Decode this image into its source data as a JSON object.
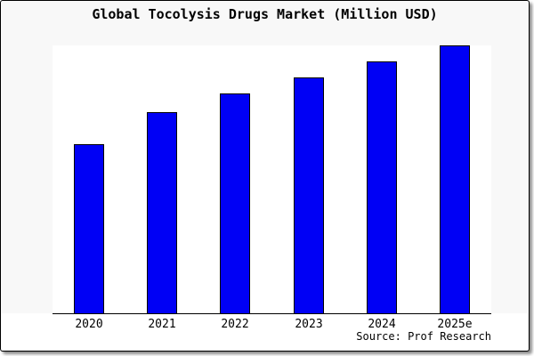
{
  "page": {
    "title": "Global Tocolysis Drugs Market (Million USD)",
    "source": "Source: Prof Research"
  },
  "colors": {
    "bar_fill": "#0000f5",
    "bar_outline": "#000000",
    "card_background": "#f8f8f8",
    "card_border": "#000000",
    "plot_background": "#ffffff",
    "axis_line": "#000000",
    "text": "#000000"
  },
  "chart_data": {
    "type": "bar",
    "title": "Global Tocolysis Drugs Market (Million USD)",
    "categories": [
      "2020",
      "2021",
      "2022",
      "2023",
      "2024",
      "2025e"
    ],
    "values": [
      63,
      75,
      82,
      88,
      94,
      100
    ],
    "xlabel": "",
    "ylabel": "",
    "ylim": [
      0,
      100
    ],
    "y_axis_labels_visible": false,
    "grid": false,
    "legend": "none",
    "units": "Million USD",
    "source": "Source: Prof Research",
    "note": "Chart shows no numeric value labels; values are relative estimates normalized so the tallest bar (2025e) = 100"
  }
}
